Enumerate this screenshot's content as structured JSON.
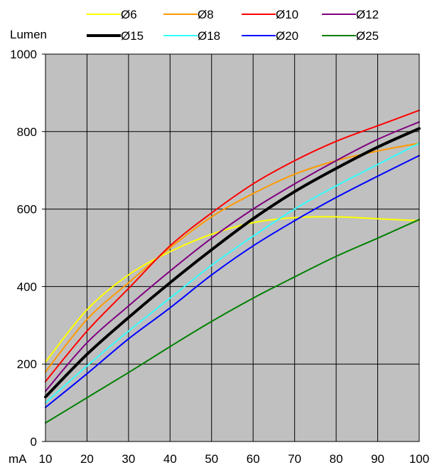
{
  "chart_data": {
    "type": "line",
    "ylabel": "Lumen",
    "xlabel": "mA",
    "xlim": [
      10,
      100
    ],
    "ylim": [
      0,
      1000
    ],
    "x_ticks": [
      "10",
      "20",
      "30",
      "40",
      "50",
      "60",
      "70",
      "80",
      "90",
      "100"
    ],
    "y_ticks": [
      "0",
      "200",
      "400",
      "600",
      "800",
      "1000"
    ],
    "grid": true,
    "legend_position": "top",
    "plot_background": "#c0c0c0",
    "x": [
      10,
      20,
      30,
      40,
      50,
      60,
      70,
      80,
      90,
      100
    ],
    "series": [
      {
        "name": "Ø6",
        "color": "#ffff00",
        "width": 2,
        "values": [
          205,
          340,
          430,
          490,
          535,
          565,
          578,
          580,
          575,
          570
        ]
      },
      {
        "name": "Ø8",
        "color": "#ff9900",
        "width": 2,
        "values": [
          180,
          315,
          410,
          500,
          580,
          640,
          690,
          725,
          750,
          770
        ]
      },
      {
        "name": "Ø10",
        "color": "#ff0000",
        "width": 2,
        "values": [
          155,
          285,
          395,
          505,
          590,
          665,
          725,
          775,
          815,
          855
        ]
      },
      {
        "name": "Ø12",
        "color": "#800080",
        "width": 2,
        "values": [
          130,
          255,
          350,
          440,
          525,
          600,
          665,
          725,
          780,
          825
        ]
      },
      {
        "name": "Ø15",
        "color": "#000000",
        "width": 4,
        "values": [
          115,
          225,
          320,
          410,
          495,
          575,
          645,
          705,
          760,
          808
        ]
      },
      {
        "name": "Ø18",
        "color": "#33ffff",
        "width": 2,
        "values": [
          100,
          195,
          285,
          370,
          455,
          530,
          600,
          660,
          715,
          770
        ]
      },
      {
        "name": "Ø20",
        "color": "#0000ff",
        "width": 2,
        "values": [
          88,
          175,
          265,
          345,
          430,
          505,
          570,
          630,
          685,
          738
        ]
      },
      {
        "name": "Ø25",
        "color": "#008000",
        "width": 2,
        "values": [
          48,
          113,
          178,
          245,
          310,
          370,
          425,
          478,
          525,
          573
        ]
      }
    ]
  }
}
